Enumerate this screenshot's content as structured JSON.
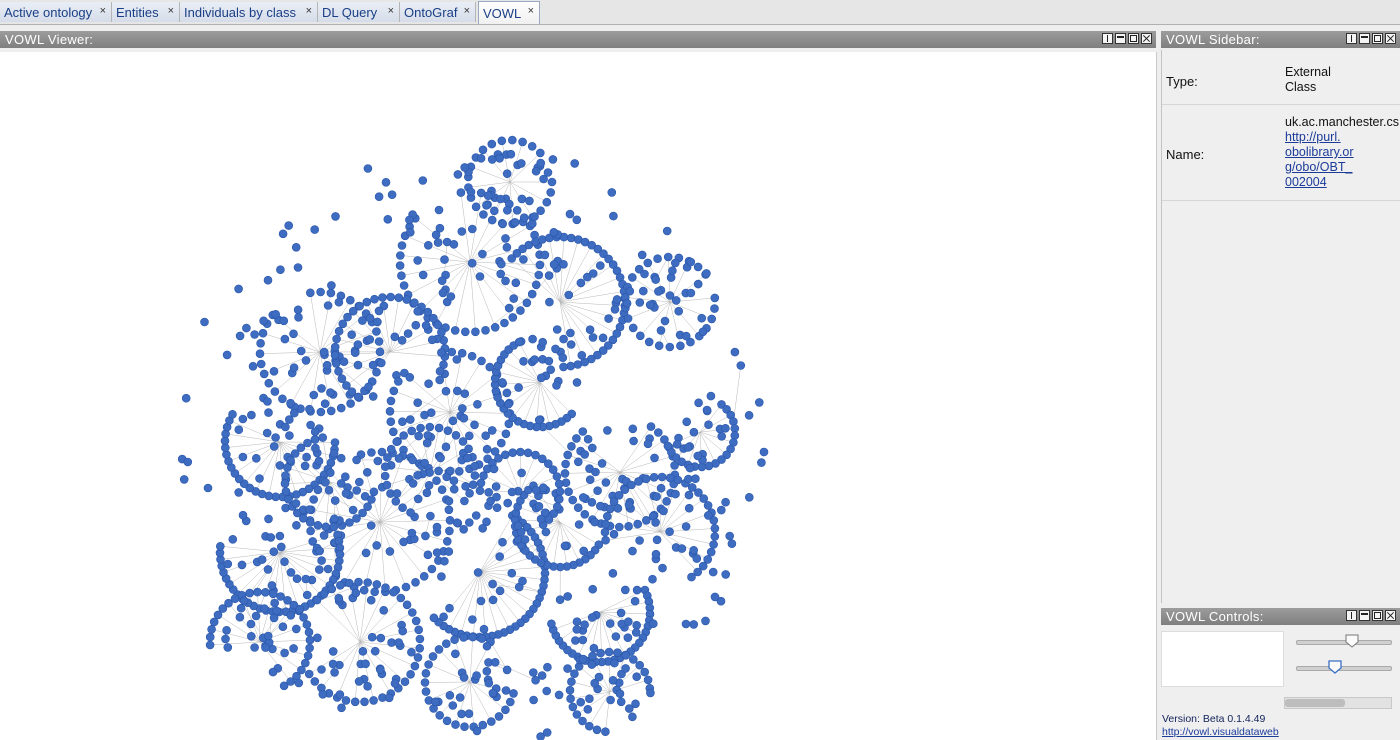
{
  "tabs": [
    {
      "label": "Active ontology",
      "close": "×"
    },
    {
      "label": "Entities",
      "close": "×"
    },
    {
      "label": "Individuals by class",
      "close": "×"
    },
    {
      "label": "DL Query",
      "close": "×"
    },
    {
      "label": "OntoGraf",
      "close": "×"
    },
    {
      "label": "VOWL",
      "close": "×"
    }
  ],
  "viewer": {
    "title": "VOWL Viewer:"
  },
  "sidebar": {
    "title": "VOWL Sidebar:",
    "type_label": "Type:",
    "type_value_line1": "External",
    "type_value_line2": "Class",
    "name_label": "Name:",
    "name_value": "uk.ac.manchester.cs",
    "name_link_lines": [
      "http://purl.",
      "obolibrary.or",
      "g/obo/OBT_",
      "002004"
    ]
  },
  "controls": {
    "title": "VOWL Controls:",
    "slider1_level": 0.6,
    "slider2_level": 0.42,
    "version": "Version: Beta 0.1.4.49",
    "link": "http://vowl.visualdataweb"
  },
  "colors": {
    "node": "#3d6cc0",
    "node_stroke": "#2a55a8",
    "edge": "#b8b8b8"
  }
}
